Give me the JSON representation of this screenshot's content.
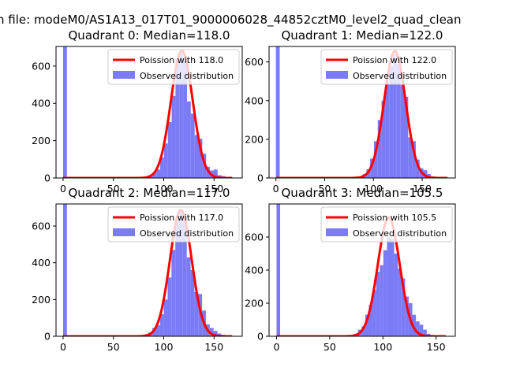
{
  "figure": {
    "suptitle": "n file: modeM0/AS1A13_017T01_9000006028_44852cztM0_level2_quad_clean"
  },
  "colors": {
    "hist": "#7b7bf6",
    "line": "#ff0000",
    "line_alpha_overlay": "#ff8a8a"
  },
  "chart_data": [
    {
      "type": "bar",
      "title": "Quadrant 0: Median=118.0",
      "xlim": [
        -7,
        178
      ],
      "ylim": [
        0,
        705
      ],
      "xticks": [
        0,
        50,
        100,
        150
      ],
      "yticks": [
        0,
        200,
        400,
        600
      ],
      "legend": {
        "placement": "top-right",
        "line": "Poission with 118.0",
        "hist": "Observed distribution"
      },
      "hist_binwidth": 3.8,
      "hist": {
        "x": [
          0,
          73.7,
          77.5,
          81.3,
          85.1,
          88.9,
          92.7,
          96.5,
          100.3,
          104.1,
          107.9,
          111.7,
          115.5,
          119.3,
          123.1,
          126.9,
          130.7,
          134.5,
          138.3,
          142.1,
          145.9,
          149.7,
          153.5,
          157.3,
          161.1
        ],
        "y": [
          710,
          2,
          4,
          8,
          15,
          30,
          45,
          110,
          185,
          300,
          440,
          640,
          680,
          630,
          410,
          345,
          230,
          210,
          130,
          60,
          40,
          45,
          15,
          10,
          4
        ]
      },
      "poisson": {
        "mean": 118.0,
        "peak": 682,
        "xmax": 168
      }
    },
    {
      "type": "bar",
      "title": "Quadrant 1: Median=122.0",
      "xlim": [
        -7,
        184
      ],
      "ylim": [
        0,
        680
      ],
      "xticks": [
        0,
        50,
        100,
        150
      ],
      "yticks": [
        0,
        200,
        400,
        600
      ],
      "legend": {
        "placement": "top-right",
        "line": "Poission with 122.0",
        "hist": "Observed distribution"
      },
      "hist_binwidth": 3.9,
      "hist": {
        "x": [
          0,
          81.1,
          85.0,
          88.9,
          92.8,
          96.7,
          100.6,
          104.5,
          108.4,
          112.3,
          116.2,
          120.1,
          124.0,
          127.9,
          131.8,
          135.7,
          139.6,
          143.5,
          147.4,
          151.3,
          155.2,
          159.1,
          163.0,
          166.9
        ],
        "y": [
          710,
          4,
          8,
          20,
          45,
          100,
          190,
          300,
          400,
          490,
          580,
          640,
          590,
          480,
          420,
          210,
          190,
          95,
          50,
          40,
          20,
          8,
          4,
          2
        ]
      },
      "poisson": {
        "mean": 122.0,
        "peak": 655,
        "xmax": 176
      }
    },
    {
      "type": "bar",
      "title": "Quadrant 2: Median=117.0",
      "xlim": [
        -7,
        178
      ],
      "ylim": [
        0,
        720
      ],
      "xticks": [
        0,
        50,
        100,
        150
      ],
      "yticks": [
        0,
        200,
        400,
        600
      ],
      "legend": {
        "placement": "top-right",
        "line": "Poission with 117.0",
        "hist": "Observed distribution"
      },
      "hist_binwidth": 3.8,
      "hist": {
        "x": [
          0,
          73.5,
          77.3,
          81.1,
          84.9,
          88.7,
          92.5,
          96.3,
          100.1,
          103.9,
          107.7,
          111.5,
          115.3,
          119.1,
          122.9,
          126.7,
          130.5,
          134.3,
          138.1,
          141.9,
          145.7,
          149.5,
          153.3,
          157.1,
          160.9
        ],
        "y": [
          720,
          2,
          4,
          10,
          20,
          45,
          60,
          120,
          200,
          320,
          470,
          640,
          690,
          650,
          430,
          360,
          240,
          230,
          140,
          65,
          45,
          30,
          15,
          8,
          4
        ]
      },
      "poisson": {
        "mean": 117.0,
        "peak": 688,
        "xmax": 168
      }
    },
    {
      "type": "bar",
      "title": "Quadrant 3: Median=105.5",
      "xlim": [
        -7,
        168
      ],
      "ylim": [
        0,
        800
      ],
      "xticks": [
        0,
        50,
        100,
        150
      ],
      "yticks": [
        0,
        200,
        400,
        600
      ],
      "legend": {
        "placement": "top-right",
        "line": "Poission with 105.5",
        "hist": "Observed distribution"
      },
      "hist_binwidth": 3.4,
      "hist": {
        "x": [
          0,
          63.0,
          66.4,
          69.8,
          73.2,
          76.6,
          80.0,
          83.4,
          86.8,
          90.2,
          93.6,
          97.0,
          100.4,
          103.8,
          107.2,
          110.6,
          114.0,
          117.4,
          120.8,
          124.2,
          127.6,
          131.0,
          134.4,
          137.8,
          141.2,
          144.6,
          148.0
        ],
        "y": [
          800,
          2,
          4,
          8,
          15,
          40,
          60,
          130,
          190,
          280,
          390,
          430,
          520,
          600,
          590,
          500,
          410,
          350,
          240,
          200,
          130,
          90,
          70,
          40,
          15,
          8,
          4
        ]
      },
      "poisson": {
        "mean": 105.5,
        "peak": 718,
        "xmax": 159
      }
    }
  ]
}
